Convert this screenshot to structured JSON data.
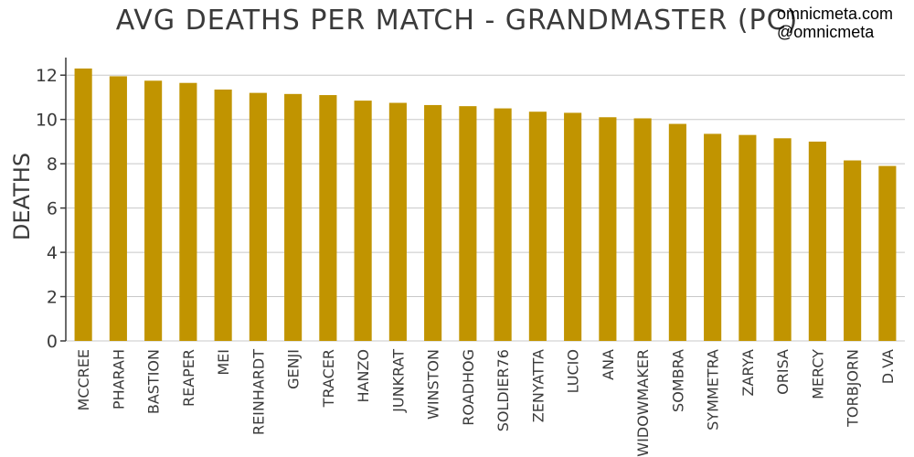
{
  "watermark": {
    "line1": "omnicmeta.com",
    "line2": "@omnicmeta"
  },
  "colors": {
    "bar": "#c19400",
    "grid": "#c8c8c8",
    "text": "#3a3a3a"
  },
  "chart_data": {
    "type": "bar",
    "title": "AVG DEATHS PER MATCH - GRANDMASTER (PC)",
    "xlabel": "",
    "ylabel": "DEATHS",
    "ylim": [
      0,
      13
    ],
    "yticks": [
      0,
      2,
      4,
      6,
      8,
      10,
      12
    ],
    "grid": true,
    "categories": [
      "MCCREE",
      "PHARAH",
      "BASTION",
      "REAPER",
      "MEI",
      "REINHARDT",
      "GENJI",
      "TRACER",
      "HANZO",
      "JUNKRAT",
      "WINSTON",
      "ROADHOG",
      "SOLDIER76",
      "ZENYATTA",
      "LUCIO",
      "ANA",
      "WIDOWMAKER",
      "SOMBRA",
      "SYMMETRA",
      "ZARYA",
      "ORISA",
      "MERCY",
      "TORBJORN",
      "D.VA"
    ],
    "values": [
      12.3,
      11.95,
      11.75,
      11.65,
      11.35,
      11.2,
      11.15,
      11.1,
      10.85,
      10.75,
      10.65,
      10.6,
      10.5,
      10.35,
      10.3,
      10.1,
      10.05,
      9.8,
      9.35,
      9.3,
      9.15,
      9.0,
      8.15,
      7.9
    ]
  }
}
